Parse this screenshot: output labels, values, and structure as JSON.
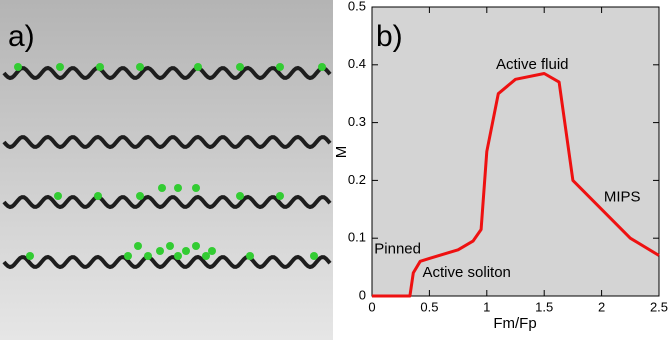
{
  "illustration": {
    "label": "a)"
  },
  "chart_data": {
    "type": "line",
    "panel_label": "b)",
    "x_label": "Fm/Fp",
    "y_label": "M",
    "x": [
      0,
      0.33,
      0.36,
      0.42,
      0.5,
      0.75,
      0.88,
      0.95,
      1.0,
      1.1,
      1.25,
      1.5,
      1.63,
      1.75,
      2.25,
      2.5
    ],
    "series": [
      {
        "name": null,
        "color": "#ee1111",
        "values": [
          0,
          0,
          0.04,
          0.06,
          0.065,
          0.08,
          0.095,
          0.115,
          0.25,
          0.35,
          0.375,
          0.385,
          0.37,
          0.2,
          0.1,
          0.07
        ]
      }
    ],
    "xlim": [
      0,
      2.5
    ],
    "ylim": [
      0,
      0.5
    ],
    "xticks": [
      0,
      0.5,
      1,
      1.5,
      2,
      2.5
    ],
    "yticks": [
      0,
      0.1,
      0.2,
      0.3,
      0.4,
      0.5
    ],
    "annotations": [
      {
        "text": "Pinned",
        "x": 0.02,
        "y": 0.08
      },
      {
        "text": "Active soliton",
        "x": 0.44,
        "y": 0.04
      },
      {
        "text": "Active fluid",
        "x": 1.08,
        "y": 0.4
      },
      {
        "text": "MIPS",
        "x": 2.02,
        "y": 0.17
      }
    ]
  }
}
